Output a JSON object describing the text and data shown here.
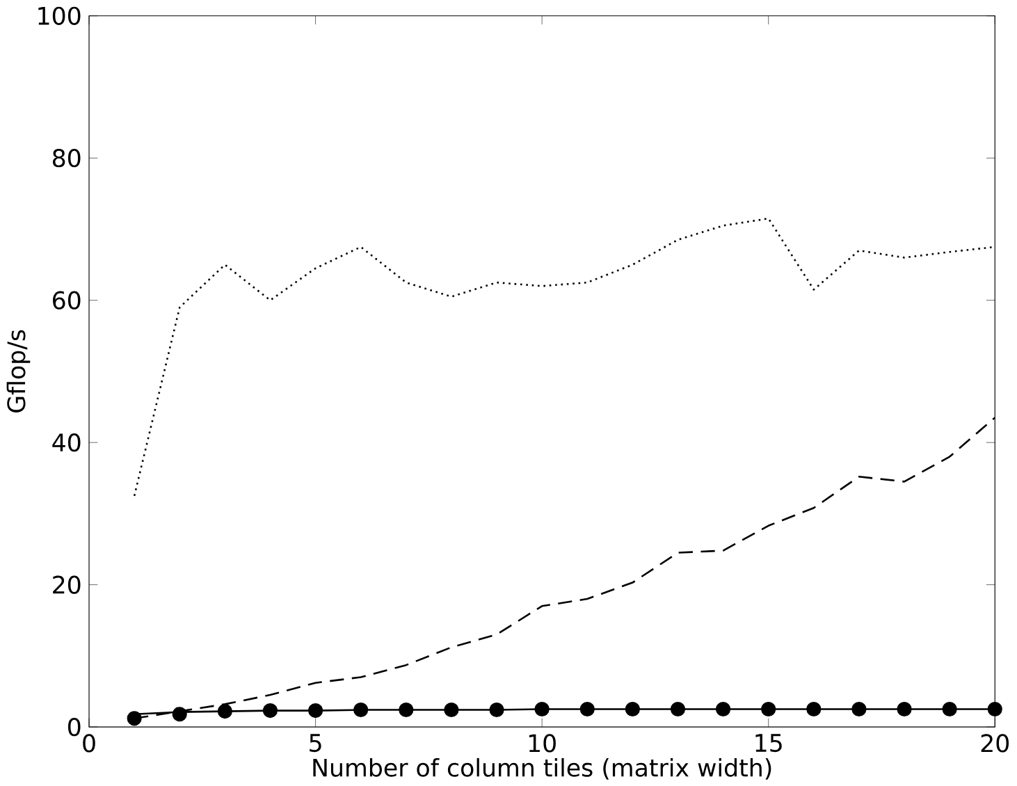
{
  "chart_data": {
    "type": "line",
    "xlabel": "Number of column tiles (matrix width)",
    "ylabel": "Gflop/s",
    "x": [
      1,
      2,
      3,
      4,
      5,
      6,
      7,
      8,
      9,
      10,
      11,
      12,
      13,
      14,
      15,
      16,
      17,
      18,
      19,
      20
    ],
    "xlim": [
      0,
      20
    ],
    "xticks": [
      0,
      5,
      10,
      15,
      20
    ],
    "ylim": [
      0,
      100
    ],
    "yticks": [
      0,
      20,
      40,
      60,
      80,
      100
    ],
    "grid": false,
    "series": [
      {
        "color": "#000000",
        "line_style": "dotted",
        "marker": "none",
        "values": [
          32.5,
          59,
          65,
          60,
          64.5,
          67.5,
          62.5,
          60.5,
          62.5,
          62,
          62.5,
          65,
          68.5,
          70.5,
          71.5,
          61.5,
          67,
          66,
          66.8,
          67.5
        ]
      },
      {
        "color": "#000000",
        "line_style": "dashed",
        "marker": "none",
        "values": [
          1.2,
          2.2,
          3.2,
          4.5,
          6.2,
          7,
          8.7,
          11.2,
          13,
          17,
          18,
          20.3,
          24.5,
          24.8,
          28.3,
          30.8,
          35.2,
          34.5,
          38,
          43.5
        ]
      },
      {
        "color": "#000000",
        "line_style": "solid",
        "values": [
          1.8,
          2.1,
          2.2,
          2.3,
          2.3,
          2.4,
          2.4,
          2.4,
          2.4,
          2.5,
          2.5,
          2.5,
          2.5,
          2.5,
          2.5,
          2.5,
          2.5,
          2.5,
          2.5,
          2.5
        ]
      },
      {
        "type": "scatter",
        "color": "#000000",
        "marker": "circle",
        "values": [
          1.2,
          1.8,
          2.2,
          2.3,
          2.3,
          2.4,
          2.4,
          2.4,
          2.4,
          2.5,
          2.5,
          2.5,
          2.5,
          2.5,
          2.5,
          2.5,
          2.5,
          2.5,
          2.5,
          2.5
        ]
      }
    ]
  }
}
